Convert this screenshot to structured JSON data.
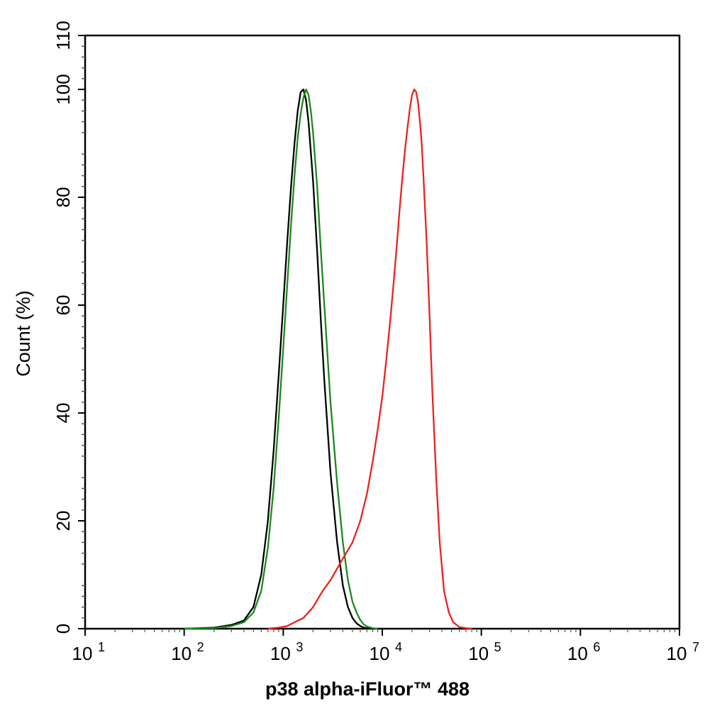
{
  "chart_data": {
    "type": "line",
    "title": "",
    "xlabel": "p38 alpha-iFluor™ 488",
    "ylabel": "Count  (%)",
    "x_scale": "log",
    "xlim": [
      10,
      10000000
    ],
    "ylim": [
      0,
      110
    ],
    "x_ticks": [
      {
        "value": 10,
        "base": "10",
        "exp": "1"
      },
      {
        "value": 100,
        "base": "10",
        "exp": "2"
      },
      {
        "value": 1000,
        "base": "10",
        "exp": "3"
      },
      {
        "value": 10000,
        "base": "10",
        "exp": "4"
      },
      {
        "value": 100000,
        "base": "10",
        "exp": "5"
      },
      {
        "value": 1000000,
        "base": "10",
        "exp": "6"
      },
      {
        "value": 10000000,
        "base": "10",
        "exp": "7"
      }
    ],
    "y_ticks": [
      0,
      20,
      40,
      60,
      80,
      100,
      110
    ],
    "grid": false,
    "legend": "none",
    "series": [
      {
        "color": "#000000",
        "x": [
          100,
          200,
          300,
          400,
          500,
          600,
          700,
          800,
          900,
          1000,
          1100,
          1200,
          1300,
          1400,
          1500,
          1600,
          1700,
          1800,
          2000,
          2200,
          2400,
          2600,
          3000,
          3500,
          4000,
          4500,
          5000,
          5500,
          6000,
          6500,
          7000,
          8000,
          9000
        ],
        "y": [
          0,
          0.2,
          0.7,
          1.5,
          4,
          10,
          20,
          33,
          47,
          60,
          72,
          82,
          90,
          96,
          99.5,
          100,
          98,
          94,
          83,
          70,
          57,
          46,
          29,
          16,
          8,
          4,
          2,
          1,
          0.5,
          0.2,
          0.1,
          0,
          0
        ]
      },
      {
        "color": "#1a8a1a",
        "x": [
          100,
          200,
          300,
          400,
          500,
          600,
          700,
          800,
          900,
          1000,
          1100,
          1200,
          1300,
          1400,
          1500,
          1600,
          1700,
          1800,
          1900,
          2000,
          2200,
          2400,
          2600,
          3000,
          3500,
          4000,
          4500,
          5000,
          5500,
          6000,
          6500,
          7000,
          8000,
          9000
        ],
        "y": [
          0,
          0.1,
          0.5,
          1.2,
          3,
          7,
          15,
          26,
          39,
          52,
          64,
          75,
          84,
          91,
          95.5,
          98.5,
          100,
          99,
          96,
          92,
          82,
          70,
          60,
          42,
          27,
          16,
          9,
          5,
          3,
          1.6,
          0.8,
          0.4,
          0.1,
          0
        ]
      },
      {
        "color": "#e8231f",
        "x": [
          700,
          900,
          1100,
          1300,
          1600,
          2000,
          2500,
          3000,
          4000,
          5000,
          6000,
          7000,
          8000,
          9000,
          10000,
          11000,
          12000,
          13000,
          14000,
          15000,
          16000,
          17000,
          18000,
          19000,
          20000,
          21000,
          22000,
          23000,
          24000,
          25000,
          26000,
          28000,
          30000,
          32000,
          35000,
          38000,
          42000,
          47000,
          52000,
          60000,
          70000,
          80000
        ],
        "y": [
          0,
          0.2,
          0.5,
          1.2,
          2,
          4,
          7,
          9,
          13,
          16,
          20,
          25,
          31,
          37,
          43,
          50,
          57,
          64,
          71,
          78,
          84,
          89,
          93,
          96.5,
          99,
          100,
          99.5,
          97.5,
          94,
          90,
          84,
          72,
          58,
          44,
          28,
          16,
          7,
          3,
          1.2,
          0.3,
          0.1,
          0
        ]
      }
    ]
  }
}
